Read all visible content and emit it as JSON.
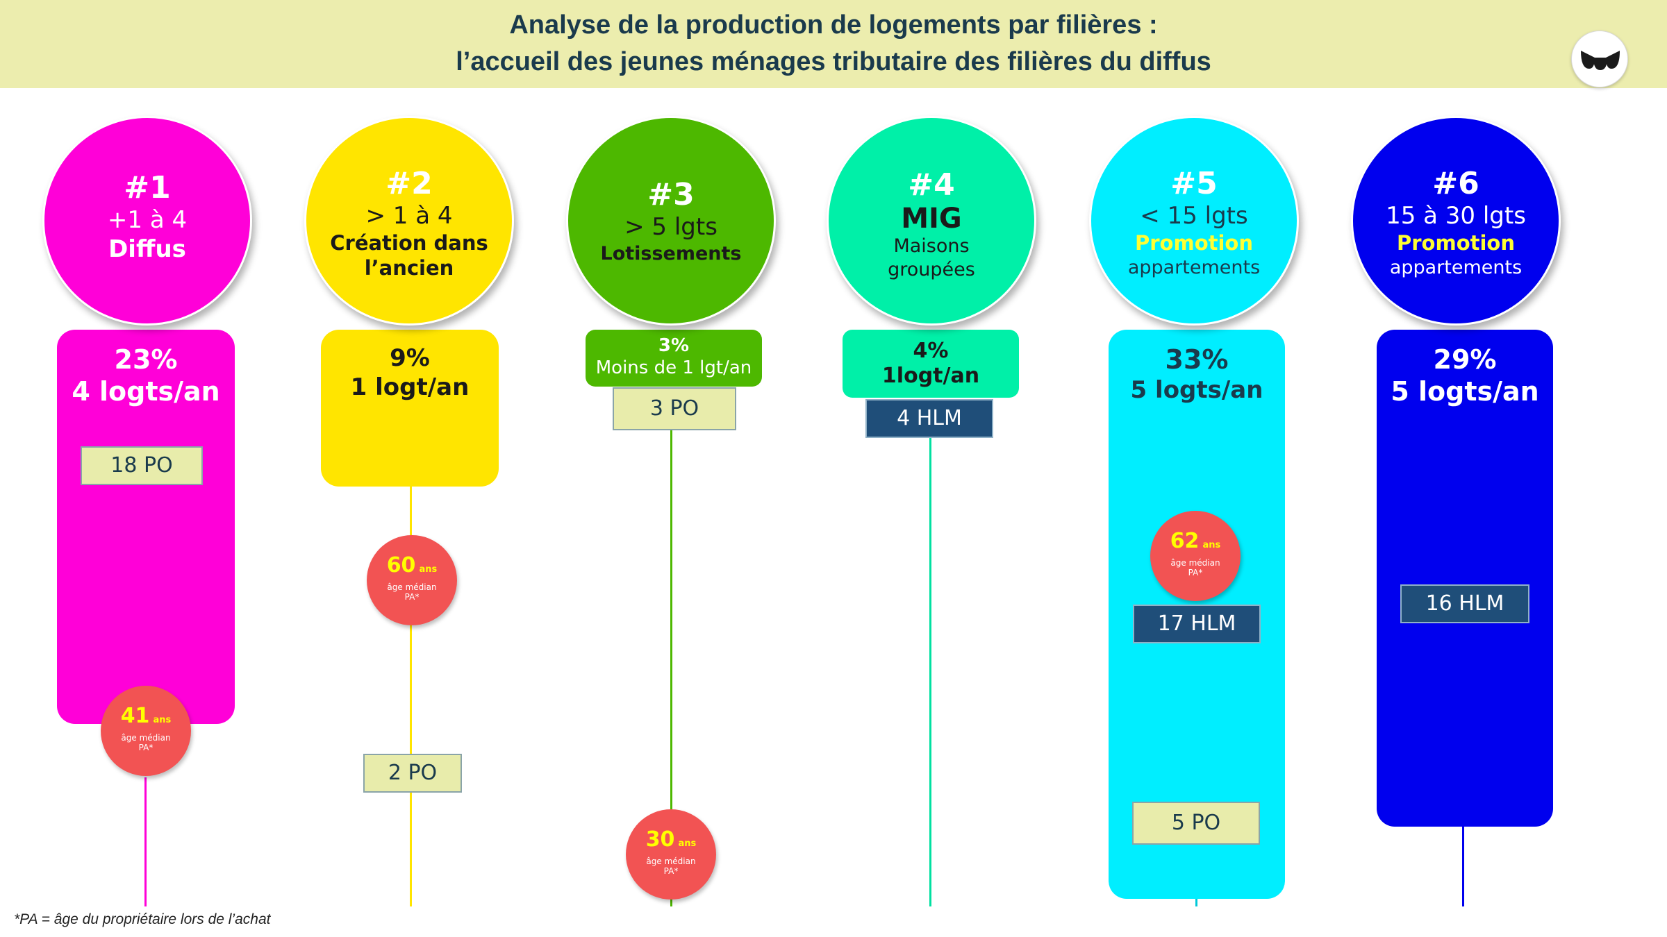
{
  "header": {
    "title_line1": "Analyse de la production de logements par filières :",
    "title_line2": "l’accueil des jeunes ménages tributaire des filières du diffus"
  },
  "logo_icon": "brand-logo-icon",
  "colors": {
    "col1": "#ff00d8",
    "col2": "#ffe500",
    "col3": "#4db800",
    "col4": "#00f0a8",
    "col5": "#00eeff",
    "col6": "#0000ee",
    "age_badge": "#f25353",
    "hlm_tag": "#1f4e79",
    "po_tag": "#e8ecab",
    "promotion_text": "#ffff33"
  },
  "columns": [
    {
      "num": "#1",
      "l1": "+1 à 4",
      "l2": "Diffus",
      "l3": "",
      "pct": "23%",
      "rate": "4 logts/an",
      "tags": [
        "18 PO"
      ],
      "age": {
        "value": "41",
        "unit": "ans",
        "label1": "âge médian",
        "label2": "PA*"
      }
    },
    {
      "num": "#2",
      "l1": "> 1 à 4",
      "l2": "Création dans",
      "l3": "l’ancien",
      "pct": "9%",
      "rate": "1 logt/an",
      "tags": [
        "2 PO"
      ],
      "age": {
        "value": "60",
        "unit": "ans",
        "label1": "âge médian",
        "label2": "PA*"
      }
    },
    {
      "num": "#3",
      "l1": "> 5 lgts",
      "l2": "Lotissements",
      "l3": "",
      "pct": "3%",
      "rate": "Moins de 1 lgt/an",
      "tags": [
        "3 PO"
      ],
      "age": {
        "value": "30",
        "unit": "ans",
        "label1": "âge médian",
        "label2": "PA*"
      }
    },
    {
      "num": "#4",
      "l1": "MIG",
      "l2": "Maisons",
      "l3": "groupées",
      "pct": "4%",
      "rate": "1logt/an",
      "tags": [
        "4 HLM"
      ]
    },
    {
      "num": "#5",
      "l1": "< 15 lgts",
      "l2": "Promotion",
      "l3": "appartements",
      "pct": "33%",
      "rate": "5 logts/an",
      "tags": [
        "17 HLM",
        "5 PO"
      ],
      "age": {
        "value": "62",
        "unit": "ans",
        "label1": "âge médian",
        "label2": "PA*"
      }
    },
    {
      "num": "#6",
      "l1": "15 à 30 lgts",
      "l2": "Promotion",
      "l3": "appartements",
      "pct": "29%",
      "rate": "5 logts/an",
      "tags": [
        "16 HLM"
      ]
    }
  ],
  "footnote": "*PA = âge du propriétaire lors de l’achat"
}
